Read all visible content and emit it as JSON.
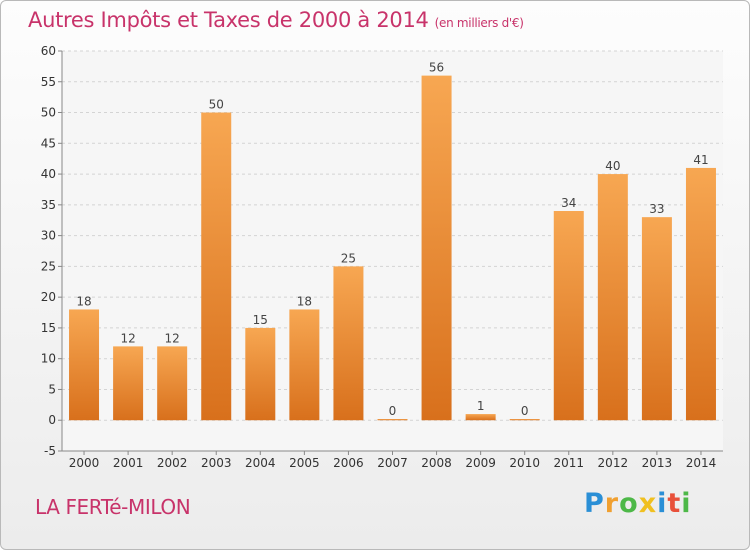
{
  "header": {
    "title": "Autres Impôts et Taxes de 2000 à 2014",
    "unit": "(en milliers d'€)"
  },
  "commune": "LA FERTé-MILON",
  "logo": {
    "letters": [
      "P",
      "r",
      "o",
      "x",
      "i",
      "t",
      "i"
    ],
    "colors": [
      "#2a8fd6",
      "#f0a030",
      "#4db848",
      "#f0c020",
      "#2a8fd6",
      "#e8503a",
      "#4db848"
    ]
  },
  "colors": {
    "bar": "#f0903a",
    "bar_dark": "#e07820",
    "title": "#c8336a",
    "grid": "#d4d4d4"
  },
  "chart_data": {
    "type": "bar",
    "categories": [
      "2000",
      "2001",
      "2002",
      "2003",
      "2004",
      "2005",
      "2006",
      "2007",
      "2008",
      "2009",
      "2010",
      "2011",
      "2012",
      "2013",
      "2014"
    ],
    "values": [
      18,
      12,
      12,
      50,
      15,
      18,
      25,
      0,
      56,
      1,
      0,
      34,
      40,
      33,
      41
    ],
    "ylim": [
      -5,
      60
    ],
    "yticks": [
      -5,
      0,
      5,
      10,
      15,
      20,
      25,
      30,
      35,
      40,
      45,
      50,
      55,
      60
    ],
    "grid": true,
    "xlabel": "",
    "ylabel": ""
  }
}
